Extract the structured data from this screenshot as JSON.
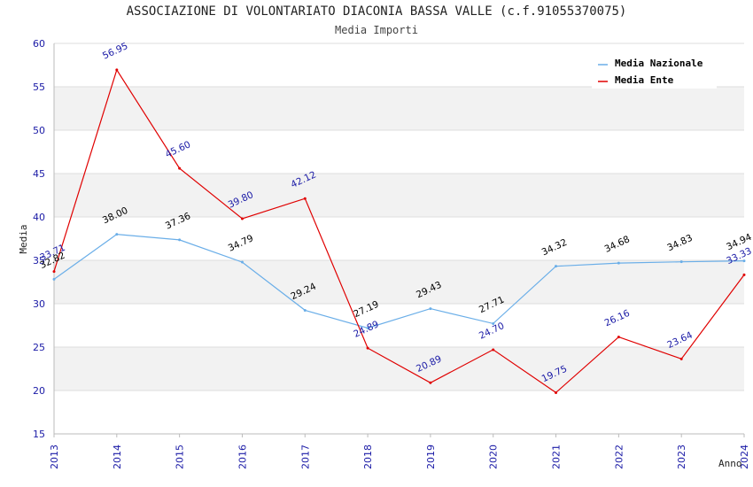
{
  "header": {
    "title": "ASSOCIAZIONE DI VOLONTARIATO DIACONIA BASSA VALLE (c.f.91055370075)",
    "subtitle": "Media Importi"
  },
  "chart_data": {
    "type": "line",
    "title": "ASSOCIAZIONE DI VOLONTARIATO DIACONIA BASSA VALLE (c.f.91055370075)",
    "subtitle": "Media Importi",
    "xlabel": "Anno",
    "ylabel": "Media",
    "ylim": [
      15,
      60
    ],
    "yticks": [
      15,
      20,
      25,
      30,
      35,
      40,
      45,
      50,
      55,
      60
    ],
    "categories": [
      "2013",
      "2014",
      "2015",
      "2016",
      "2017",
      "2018",
      "2019",
      "2020",
      "2021",
      "2022",
      "2023",
      "2024"
    ],
    "grid": true,
    "legend_position": "top-right",
    "series": [
      {
        "name": "Media Nazionale",
        "color": "#6aaee8",
        "label_color": "#000000",
        "values": [
          32.82,
          38.0,
          37.36,
          34.79,
          29.24,
          27.19,
          29.43,
          27.71,
          34.32,
          34.68,
          34.83,
          34.94
        ],
        "labels": [
          "32.82",
          "38.00",
          "37.36",
          "34.79",
          "29.24",
          "27.19",
          "29.43",
          "27.71",
          "34.32",
          "34.68",
          "34.83",
          "34.94"
        ]
      },
      {
        "name": "Media Ente",
        "color": "#e00000",
        "label_color": "#1a1aa6",
        "values": [
          33.71,
          56.95,
          45.6,
          39.8,
          42.12,
          24.89,
          20.89,
          24.7,
          19.75,
          26.16,
          23.64,
          33.33
        ],
        "labels": [
          "33.71",
          "56.95",
          "45.60",
          "39.80",
          "42.12",
          "24.89",
          "20.89",
          "24.70",
          "19.75",
          "26.16",
          "23.64",
          "33.33"
        ]
      }
    ]
  }
}
